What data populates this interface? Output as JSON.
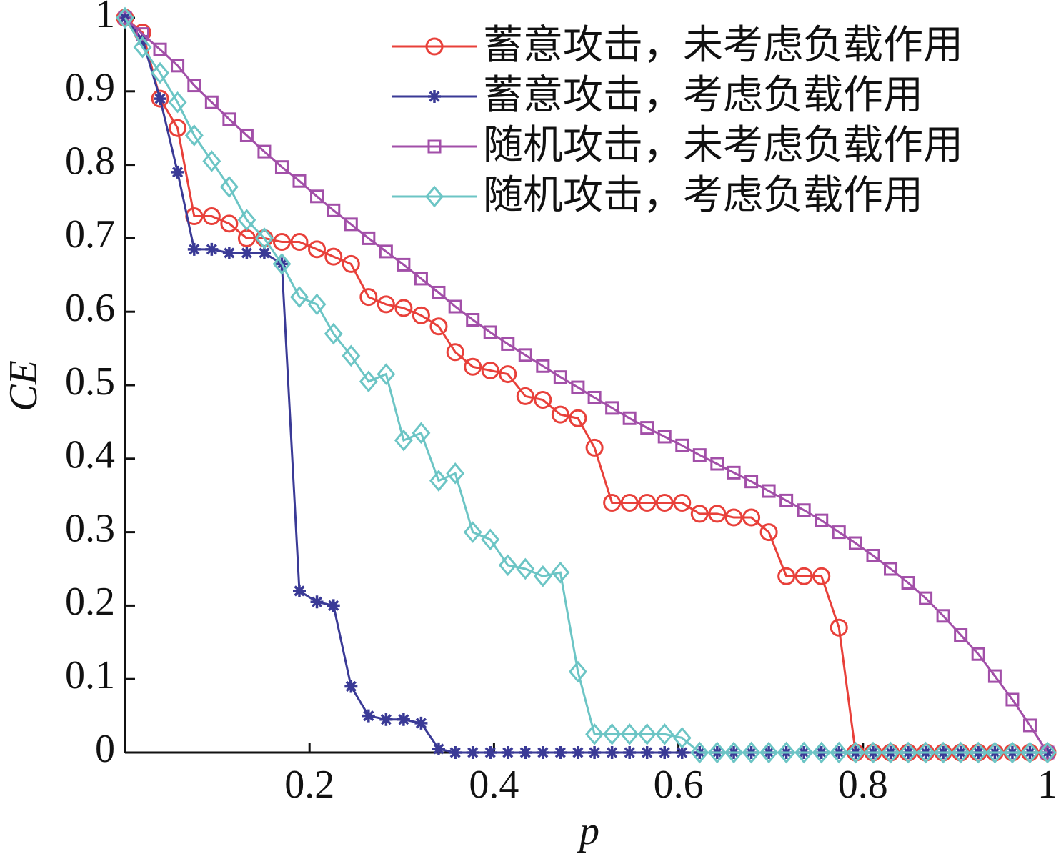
{
  "chart_data": {
    "type": "line",
    "x_label": "p",
    "y_label": "CE",
    "x": [
      0,
      0.019,
      0.038,
      0.057,
      0.075,
      0.094,
      0.113,
      0.132,
      0.151,
      0.17,
      0.189,
      0.208,
      0.226,
      0.245,
      0.264,
      0.283,
      0.302,
      0.321,
      0.34,
      0.358,
      0.377,
      0.396,
      0.415,
      0.434,
      0.453,
      0.472,
      0.491,
      0.509,
      0.528,
      0.547,
      0.566,
      0.585,
      0.604,
      0.623,
      0.642,
      0.66,
      0.679,
      0.698,
      0.717,
      0.736,
      0.755,
      0.774,
      0.792,
      0.811,
      0.83,
      0.849,
      0.868,
      0.887,
      0.906,
      0.925,
      0.943,
      0.962,
      0.981,
      1
    ],
    "series": [
      {
        "name": "蓄意攻击，未考虑负载作用",
        "color": "#e8403a",
        "marker": "circle",
        "values": [
          1,
          0.98,
          0.89,
          0.85,
          0.73,
          0.73,
          0.72,
          0.7,
          0.7,
          0.695,
          0.695,
          0.685,
          0.675,
          0.665,
          0.62,
          0.61,
          0.605,
          0.595,
          0.58,
          0.545,
          0.525,
          0.52,
          0.515,
          0.485,
          0.48,
          0.46,
          0.455,
          0.415,
          0.34,
          0.34,
          0.34,
          0.34,
          0.34,
          0.325,
          0.325,
          0.32,
          0.32,
          0.3,
          0.24,
          0.24,
          0.24,
          0.17,
          0,
          0,
          0,
          0,
          0,
          0,
          0,
          0,
          0,
          0,
          0,
          0
        ]
      },
      {
        "name": "蓄意攻击，考虑负载作用",
        "color": "#3a3a96",
        "marker": "star",
        "values": [
          1,
          0.97,
          0.89,
          0.79,
          0.685,
          0.685,
          0.68,
          0.68,
          0.68,
          0.665,
          0.22,
          0.205,
          0.2,
          0.09,
          0.05,
          0.045,
          0.045,
          0.04,
          0.005,
          0,
          0,
          0,
          0,
          0,
          0,
          0,
          0,
          0,
          0,
          0,
          0,
          0,
          0,
          0,
          0,
          0,
          0,
          0,
          0,
          0,
          0,
          0,
          0,
          0,
          0,
          0,
          0,
          0,
          0,
          0,
          0,
          0,
          0,
          0
        ]
      },
      {
        "name": "随机攻击，未考虑负载作用",
        "color": "#a24fa8",
        "marker": "square",
        "values": [
          1,
          0.978,
          0.957,
          0.935,
          0.908,
          0.885,
          0.862,
          0.84,
          0.818,
          0.797,
          0.778,
          0.757,
          0.738,
          0.719,
          0.7,
          0.682,
          0.664,
          0.645,
          0.626,
          0.607,
          0.589,
          0.572,
          0.556,
          0.541,
          0.526,
          0.511,
          0.497,
          0.483,
          0.469,
          0.455,
          0.442,
          0.43,
          0.418,
          0.405,
          0.393,
          0.381,
          0.369,
          0.356,
          0.343,
          0.33,
          0.316,
          0.3,
          0.285,
          0.268,
          0.25,
          0.231,
          0.21,
          0.186,
          0.16,
          0.134,
          0.104,
          0.072,
          0.037,
          0
        ]
      },
      {
        "name": "随机攻击，考虑负载作用",
        "color": "#6cc5c5",
        "marker": "diamond",
        "values": [
          1,
          0.96,
          0.925,
          0.885,
          0.84,
          0.805,
          0.77,
          0.725,
          0.7,
          0.665,
          0.62,
          0.61,
          0.57,
          0.54,
          0.505,
          0.515,
          0.425,
          0.435,
          0.37,
          0.38,
          0.3,
          0.29,
          0.255,
          0.25,
          0.24,
          0.245,
          0.11,
          0.025,
          0.025,
          0.025,
          0.025,
          0.025,
          0.02,
          0,
          0,
          0,
          0,
          0,
          0,
          0,
          0,
          0,
          0,
          0,
          0,
          0,
          0,
          0,
          0,
          0,
          0,
          0,
          0,
          0
        ]
      }
    ],
    "xlim": [
      0,
      1
    ],
    "xticks": [
      0.2,
      0.4,
      0.6,
      0.8,
      1
    ],
    "ylim": [
      0,
      1
    ],
    "yticks": [
      0,
      0.1,
      0.2,
      0.3,
      0.4,
      0.5,
      0.6,
      0.7,
      0.8,
      0.9,
      1
    ],
    "legend": "upper-right",
    "grid": false
  }
}
